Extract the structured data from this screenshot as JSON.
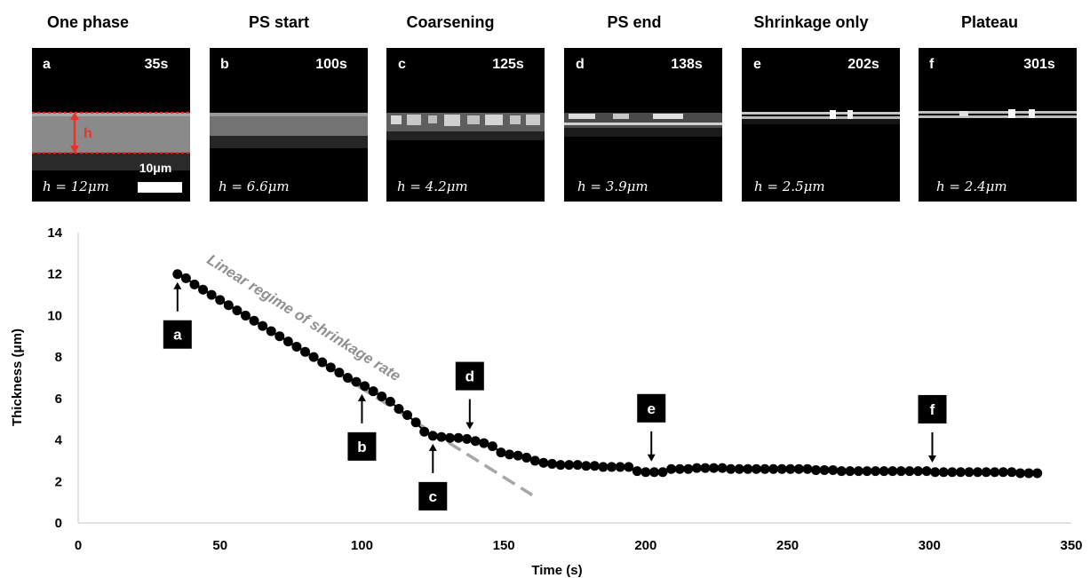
{
  "panels": [
    {
      "title": "One phase",
      "letter": "a",
      "time": "35s",
      "thickness": "h = 12μm",
      "marker": "h",
      "scalebar": "10μm"
    },
    {
      "title": "PS start",
      "letter": "b",
      "time": "100s",
      "thickness": "h = 6.6μm"
    },
    {
      "title": "Coarsening",
      "letter": "c",
      "time": "125s",
      "thickness": "h = 4.2μm"
    },
    {
      "title": "PS end",
      "letter": "d",
      "time": "138s",
      "thickness": "h = 3.9μm"
    },
    {
      "title": "Shrinkage only",
      "letter": "e",
      "time": "202s",
      "thickness": "h = 2.5μm"
    },
    {
      "title": "Plateau",
      "letter": "f",
      "time": "301s",
      "thickness": "h = 2.4μm"
    }
  ],
  "colors": {
    "data": "#000000",
    "fit_line": "#a6a6a6",
    "annotation_text": "#909090",
    "marker_box": "#000000",
    "panel_red": "#e8332a"
  },
  "chart_data": {
    "type": "scatter",
    "xlabel": "Time (s)",
    "ylabel": "Thickness (μm)",
    "xlim": [
      0,
      350
    ],
    "ylim": [
      0,
      14
    ],
    "xticks": [
      0,
      50,
      100,
      150,
      200,
      250,
      300,
      350
    ],
    "yticks": [
      0,
      2,
      4,
      6,
      8,
      10,
      12,
      14
    ],
    "grid": false,
    "series": [
      {
        "x": [
          35,
          38,
          41,
          44,
          47,
          50,
          53,
          56,
          59,
          62,
          65,
          68,
          71,
          74,
          77,
          80,
          83,
          86,
          89,
          92,
          95,
          98,
          101,
          104,
          107,
          110,
          113,
          116,
          119,
          122,
          125,
          128,
          131,
          134,
          137,
          140,
          143,
          146,
          149,
          152,
          155,
          158,
          161,
          164,
          167,
          170,
          173,
          176,
          179,
          182,
          185,
          188,
          191,
          194,
          197,
          200,
          203,
          206,
          209,
          212,
          215,
          218,
          221,
          224,
          227,
          230,
          233,
          236,
          239,
          242,
          245,
          248,
          251,
          254,
          257,
          260,
          263,
          266,
          269,
          272,
          275,
          278,
          281,
          284,
          287,
          290,
          293,
          296,
          299,
          302,
          305,
          308,
          311,
          314,
          317,
          320,
          323,
          326,
          329,
          332,
          335,
          338
        ],
        "y": [
          12.0,
          11.8,
          11.5,
          11.25,
          11.0,
          10.75,
          10.5,
          10.25,
          10.0,
          9.75,
          9.5,
          9.25,
          9.0,
          8.75,
          8.5,
          8.25,
          8.0,
          7.75,
          7.5,
          7.25,
          7.0,
          6.8,
          6.6,
          6.35,
          6.1,
          5.85,
          5.5,
          5.2,
          4.85,
          4.4,
          4.2,
          4.15,
          4.1,
          4.1,
          4.05,
          3.95,
          3.85,
          3.7,
          3.4,
          3.3,
          3.25,
          3.15,
          3.0,
          2.9,
          2.85,
          2.8,
          2.8,
          2.8,
          2.75,
          2.75,
          2.7,
          2.7,
          2.7,
          2.7,
          2.5,
          2.45,
          2.45,
          2.45,
          2.6,
          2.6,
          2.6,
          2.65,
          2.65,
          2.65,
          2.65,
          2.6,
          2.6,
          2.6,
          2.6,
          2.6,
          2.6,
          2.6,
          2.6,
          2.6,
          2.6,
          2.55,
          2.55,
          2.55,
          2.5,
          2.5,
          2.5,
          2.5,
          2.5,
          2.5,
          2.5,
          2.5,
          2.5,
          2.5,
          2.5,
          2.45,
          2.45,
          2.45,
          2.45,
          2.45,
          2.45,
          2.45,
          2.45,
          2.45,
          2.45,
          2.4,
          2.4,
          2.4
        ]
      }
    ],
    "fit_line": {
      "label": "Linear regime of shrinkage rate",
      "x": [
        35,
        160
      ],
      "y": [
        12.05,
        1.35
      ]
    },
    "markers": [
      {
        "label": "a",
        "x": 35,
        "y": 12.0
      },
      {
        "label": "b",
        "x": 100,
        "y": 6.6
      },
      {
        "label": "c",
        "x": 125,
        "y": 4.2
      },
      {
        "label": "d",
        "x": 138,
        "y": 4.0
      },
      {
        "label": "e",
        "x": 202,
        "y": 2.45
      },
      {
        "label": "f",
        "x": 301,
        "y": 2.4
      }
    ]
  }
}
